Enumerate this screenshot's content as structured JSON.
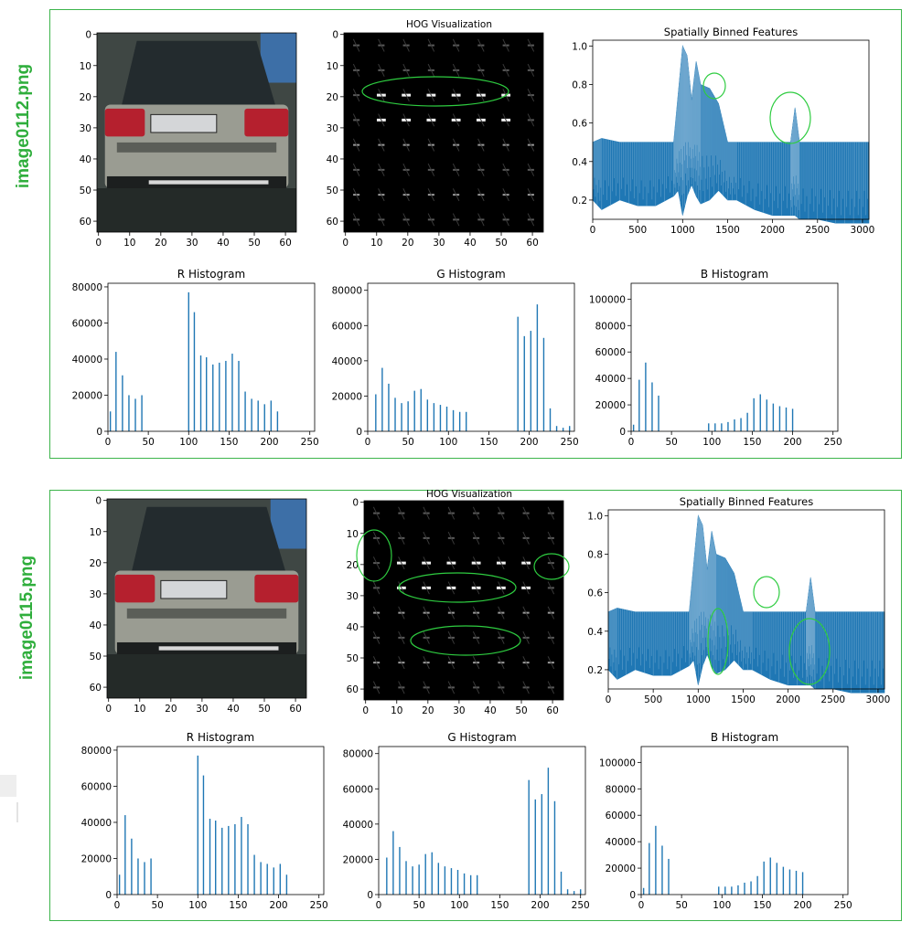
{
  "colors": {
    "panel_border": "#3cb44b",
    "label": "#2fae3c",
    "bar": "#1f77b4",
    "ellipse": "#2ecc40"
  },
  "panels": [
    {
      "label": "image0112.png",
      "car_axis": {
        "ticks": [
          0,
          10,
          20,
          30,
          40,
          50,
          60
        ]
      },
      "hog": {
        "title": "HOG Visualization",
        "ticks": [
          0,
          10,
          20,
          30,
          40,
          50,
          60
        ]
      },
      "spatial": {
        "title": "Spatially Binned Features"
      }
    },
    {
      "label": "image0115.png",
      "car_axis": {
        "ticks": [
          0,
          10,
          20,
          30,
          40,
          50,
          60
        ]
      },
      "hog": {
        "title": "HOG Visualization",
        "ticks": [
          0,
          10,
          20,
          30,
          40,
          50,
          60
        ]
      },
      "spatial": {
        "title": "Spatially Binned Features"
      }
    }
  ],
  "chart_data": [
    {
      "type": "line",
      "title": "Spatially Binned Features",
      "xlim": [
        0,
        3072
      ],
      "ylim": [
        0.1,
        1.03
      ],
      "xticks": [
        0,
        500,
        1000,
        1500,
        2000,
        2500,
        3000
      ],
      "yticks": [
        0.2,
        0.4,
        0.6,
        0.8,
        1.0
      ],
      "envelope": {
        "x": [
          0,
          100,
          300,
          500,
          700,
          900,
          950,
          1000,
          1050,
          1100,
          1150,
          1200,
          1300,
          1400,
          1500,
          1600,
          1800,
          2000,
          2200,
          2250,
          2300,
          2500,
          2700,
          2900,
          3072
        ],
        "high": [
          0.5,
          0.52,
          0.5,
          0.5,
          0.5,
          0.5,
          0.75,
          1.0,
          0.95,
          0.72,
          0.92,
          0.8,
          0.78,
          0.7,
          0.5,
          0.5,
          0.5,
          0.5,
          0.5,
          0.68,
          0.5,
          0.5,
          0.5,
          0.5,
          0.5
        ],
        "low": [
          0.2,
          0.15,
          0.2,
          0.17,
          0.17,
          0.22,
          0.25,
          0.12,
          0.22,
          0.28,
          0.22,
          0.18,
          0.2,
          0.25,
          0.2,
          0.2,
          0.15,
          0.12,
          0.12,
          0.12,
          0.1,
          0.1,
          0.08,
          0.08,
          0.08
        ]
      }
    },
    {
      "type": "bar",
      "title": "R Histogram",
      "xlim": [
        0,
        256
      ],
      "ylim": [
        0,
        82000
      ],
      "xticks": [
        0,
        50,
        100,
        150,
        200,
        250
      ],
      "yticks": [
        0,
        20000,
        40000,
        60000,
        80000
      ],
      "x": [
        3,
        10,
        18,
        26,
        34,
        42,
        100,
        107,
        115,
        122,
        130,
        138,
        146,
        154,
        162,
        170,
        178,
        186,
        194,
        202,
        210
      ],
      "values": [
        11000,
        44000,
        31000,
        20000,
        18000,
        20000,
        77000,
        66000,
        42000,
        41000,
        37000,
        38000,
        39000,
        43000,
        39000,
        22000,
        18000,
        17000,
        15000,
        17000,
        11000
      ]
    },
    {
      "type": "bar",
      "title": "G Histogram",
      "xlim": [
        0,
        256
      ],
      "ylim": [
        0,
        84000
      ],
      "xticks": [
        0,
        50,
        100,
        150,
        200,
        250
      ],
      "yticks": [
        0,
        20000,
        40000,
        60000,
        80000
      ],
      "x": [
        10,
        18,
        26,
        34,
        42,
        50,
        58,
        66,
        74,
        82,
        90,
        98,
        106,
        114,
        122,
        186,
        194,
        202,
        210,
        218,
        226,
        234,
        242,
        250
      ],
      "values": [
        21000,
        36000,
        27000,
        19000,
        16000,
        17000,
        23000,
        24000,
        18000,
        16000,
        15000,
        14000,
        12000,
        11000,
        11000,
        65000,
        54000,
        57000,
        72000,
        53000,
        13000,
        3000,
        2000,
        3000
      ]
    },
    {
      "type": "bar",
      "title": "B Histogram",
      "xlim": [
        0,
        256
      ],
      "ylim": [
        0,
        112000
      ],
      "xticks": [
        0,
        50,
        100,
        150,
        200,
        250
      ],
      "yticks": [
        0,
        20000,
        40000,
        60000,
        80000,
        100000
      ],
      "x": [
        3,
        10,
        18,
        26,
        34,
        96,
        104,
        112,
        120,
        128,
        136,
        144,
        152,
        160,
        168,
        176,
        184,
        192,
        200
      ],
      "values": [
        5000,
        39000,
        52000,
        37000,
        27000,
        6000,
        6000,
        6000,
        7000,
        9000,
        10000,
        14000,
        25000,
        28000,
        24000,
        21000,
        19000,
        18000,
        17000
      ]
    }
  ]
}
